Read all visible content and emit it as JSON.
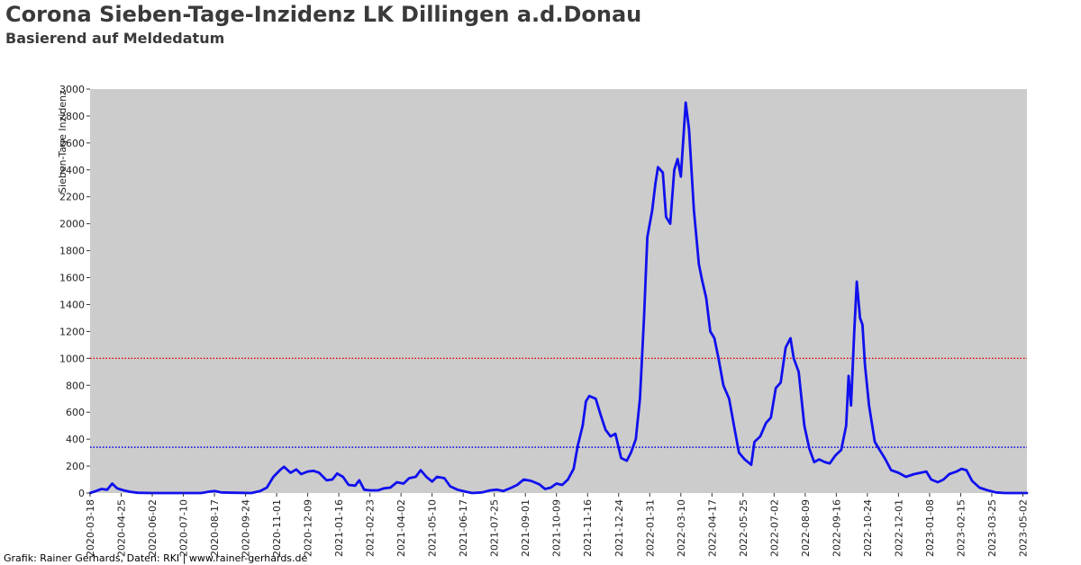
{
  "header": {
    "title": "Corona Sieben-Tage-Inzidenz LK Dillingen a.d.Donau",
    "subtitle": "Basierend auf Meldedatum"
  },
  "footer": {
    "credit": "Grafik: Rainer Gerhards, Daten: RKI | www.rainer-gerhards.de"
  },
  "chart_data": {
    "type": "line",
    "title": "Corona Sieben-Tage-Inzidenz LK Dillingen a.d.Donau",
    "subtitle": "Basierend auf Meldedatum",
    "xlabel": "",
    "ylabel": "Sieben-Tage Inzidenz",
    "ylim": [
      0,
      3000
    ],
    "xlim": [
      "2020-03-18",
      "2023-05-07"
    ],
    "yticks": [
      0,
      200,
      400,
      600,
      800,
      1000,
      1200,
      1400,
      1600,
      1800,
      2000,
      2200,
      2400,
      2600,
      2800,
      3000
    ],
    "xticks": [
      "2020-03-18",
      "2020-04-25",
      "2020-06-02",
      "2020-07-10",
      "2020-08-17",
      "2020-09-24",
      "2020-11-01",
      "2020-12-09",
      "2021-01-16",
      "2021-02-23",
      "2021-04-02",
      "2021-05-10",
      "2021-06-17",
      "2021-07-25",
      "2021-09-01",
      "2021-10-09",
      "2021-11-16",
      "2021-12-24",
      "2022-01-31",
      "2022-03-10",
      "2022-04-17",
      "2022-05-25",
      "2022-07-02",
      "2022-08-09",
      "2022-09-16",
      "2022-10-24",
      "2022-12-01",
      "2023-01-08",
      "2023-02-15",
      "2023-03-25",
      "2023-05-02"
    ],
    "grid": false,
    "background_color": "#cccccc",
    "reference_lines": [
      {
        "value": 1000,
        "color": "#e00000",
        "style": "dotted"
      },
      {
        "value": 340,
        "color": "#0000e0",
        "style": "dotted"
      }
    ],
    "series": [
      {
        "color": "#1010ee",
        "points": [
          [
            "2020-03-18",
            0
          ],
          [
            "2020-03-25",
            15
          ],
          [
            "2020-04-01",
            30
          ],
          [
            "2020-04-08",
            25
          ],
          [
            "2020-04-14",
            70
          ],
          [
            "2020-04-20",
            35
          ],
          [
            "2020-04-28",
            20
          ],
          [
            "2020-05-05",
            10
          ],
          [
            "2020-05-15",
            2
          ],
          [
            "2020-06-01",
            0
          ],
          [
            "2020-07-01",
            0
          ],
          [
            "2020-08-01",
            0
          ],
          [
            "2020-08-10",
            10
          ],
          [
            "2020-08-17",
            15
          ],
          [
            "2020-08-25",
            5
          ],
          [
            "2020-09-10",
            2
          ],
          [
            "2020-10-01",
            0
          ],
          [
            "2020-10-12",
            15
          ],
          [
            "2020-10-20",
            40
          ],
          [
            "2020-10-28",
            120
          ],
          [
            "2020-11-05",
            170
          ],
          [
            "2020-11-10",
            195
          ],
          [
            "2020-11-18",
            150
          ],
          [
            "2020-11-25",
            175
          ],
          [
            "2020-12-01",
            140
          ],
          [
            "2020-12-09",
            160
          ],
          [
            "2020-12-16",
            165
          ],
          [
            "2020-12-23",
            150
          ],
          [
            "2021-01-01",
            95
          ],
          [
            "2021-01-08",
            100
          ],
          [
            "2021-01-14",
            145
          ],
          [
            "2021-01-21",
            120
          ],
          [
            "2021-01-28",
            60
          ],
          [
            "2021-02-05",
            55
          ],
          [
            "2021-02-10",
            95
          ],
          [
            "2021-02-16",
            25
          ],
          [
            "2021-02-23",
            20
          ],
          [
            "2021-03-05",
            20
          ],
          [
            "2021-03-12",
            35
          ],
          [
            "2021-03-20",
            40
          ],
          [
            "2021-03-28",
            80
          ],
          [
            "2021-04-05",
            70
          ],
          [
            "2021-04-12",
            110
          ],
          [
            "2021-04-20",
            120
          ],
          [
            "2021-04-26",
            170
          ],
          [
            "2021-05-03",
            120
          ],
          [
            "2021-05-10",
            85
          ],
          [
            "2021-05-16",
            120
          ],
          [
            "2021-05-25",
            110
          ],
          [
            "2021-06-01",
            50
          ],
          [
            "2021-06-10",
            25
          ],
          [
            "2021-06-20",
            10
          ],
          [
            "2021-06-28",
            0
          ],
          [
            "2021-07-10",
            5
          ],
          [
            "2021-07-20",
            20
          ],
          [
            "2021-07-28",
            25
          ],
          [
            "2021-08-05",
            15
          ],
          [
            "2021-08-15",
            40
          ],
          [
            "2021-08-22",
            60
          ],
          [
            "2021-08-30",
            100
          ],
          [
            "2021-09-08",
            90
          ],
          [
            "2021-09-18",
            65
          ],
          [
            "2021-09-25",
            30
          ],
          [
            "2021-10-02",
            40
          ],
          [
            "2021-10-09",
            70
          ],
          [
            "2021-10-16",
            60
          ],
          [
            "2021-10-23",
            100
          ],
          [
            "2021-10-30",
            180
          ],
          [
            "2021-11-04",
            350
          ],
          [
            "2021-11-10",
            500
          ],
          [
            "2021-11-14",
            680
          ],
          [
            "2021-11-18",
            720
          ],
          [
            "2021-11-26",
            700
          ],
          [
            "2021-12-02",
            580
          ],
          [
            "2021-12-08",
            470
          ],
          [
            "2021-12-14",
            420
          ],
          [
            "2021-12-20",
            440
          ],
          [
            "2021-12-27",
            260
          ],
          [
            "2022-01-03",
            240
          ],
          [
            "2022-01-08",
            300
          ],
          [
            "2022-01-14",
            400
          ],
          [
            "2022-01-19",
            700
          ],
          [
            "2022-01-24",
            1300
          ],
          [
            "2022-01-28",
            1900
          ],
          [
            "2022-02-03",
            2100
          ],
          [
            "2022-02-07",
            2300
          ],
          [
            "2022-02-10",
            2420
          ],
          [
            "2022-02-16",
            2380
          ],
          [
            "2022-02-20",
            2050
          ],
          [
            "2022-02-25",
            2000
          ],
          [
            "2022-03-02",
            2400
          ],
          [
            "2022-03-06",
            2480
          ],
          [
            "2022-03-10",
            2350
          ],
          [
            "2022-03-16",
            2900
          ],
          [
            "2022-03-20",
            2700
          ],
          [
            "2022-03-26",
            2100
          ],
          [
            "2022-04-01",
            1700
          ],
          [
            "2022-04-05",
            1580
          ],
          [
            "2022-04-10",
            1450
          ],
          [
            "2022-04-15",
            1200
          ],
          [
            "2022-04-20",
            1150
          ],
          [
            "2022-04-25",
            1000
          ],
          [
            "2022-05-01",
            800
          ],
          [
            "2022-05-08",
            700
          ],
          [
            "2022-05-14",
            500
          ],
          [
            "2022-05-20",
            300
          ],
          [
            "2022-05-27",
            250
          ],
          [
            "2022-06-04",
            210
          ],
          [
            "2022-06-08",
            380
          ],
          [
            "2022-06-15",
            420
          ],
          [
            "2022-06-22",
            520
          ],
          [
            "2022-06-28",
            560
          ],
          [
            "2022-07-04",
            780
          ],
          [
            "2022-07-10",
            820
          ],
          [
            "2022-07-16",
            1080
          ],
          [
            "2022-07-22",
            1150
          ],
          [
            "2022-07-26",
            1000
          ],
          [
            "2022-08-01",
            900
          ],
          [
            "2022-08-08",
            500
          ],
          [
            "2022-08-14",
            330
          ],
          [
            "2022-08-20",
            230
          ],
          [
            "2022-08-26",
            250
          ],
          [
            "2022-09-02",
            230
          ],
          [
            "2022-09-08",
            220
          ],
          [
            "2022-09-15",
            280
          ],
          [
            "2022-09-22",
            320
          ],
          [
            "2022-09-28",
            500
          ],
          [
            "2022-10-01",
            870
          ],
          [
            "2022-10-04",
            650
          ],
          [
            "2022-10-08",
            1200
          ],
          [
            "2022-10-11",
            1570
          ],
          [
            "2022-10-15",
            1300
          ],
          [
            "2022-10-18",
            1250
          ],
          [
            "2022-10-21",
            950
          ],
          [
            "2022-10-26",
            650
          ],
          [
            "2022-11-02",
            380
          ],
          [
            "2022-11-08",
            320
          ],
          [
            "2022-11-15",
            250
          ],
          [
            "2022-11-22",
            170
          ],
          [
            "2022-12-01",
            150
          ],
          [
            "2022-12-10",
            120
          ],
          [
            "2022-12-20",
            140
          ],
          [
            "2022-12-28",
            150
          ],
          [
            "2023-01-04",
            160
          ],
          [
            "2023-01-10",
            100
          ],
          [
            "2023-01-18",
            80
          ],
          [
            "2023-01-25",
            100
          ],
          [
            "2023-02-01",
            140
          ],
          [
            "2023-02-10",
            160
          ],
          [
            "2023-02-16",
            180
          ],
          [
            "2023-02-22",
            170
          ],
          [
            "2023-03-01",
            90
          ],
          [
            "2023-03-10",
            40
          ],
          [
            "2023-03-20",
            20
          ],
          [
            "2023-03-30",
            5
          ],
          [
            "2023-04-10",
            0
          ],
          [
            "2023-04-20",
            0
          ],
          [
            "2023-05-07",
            0
          ]
        ]
      }
    ]
  }
}
